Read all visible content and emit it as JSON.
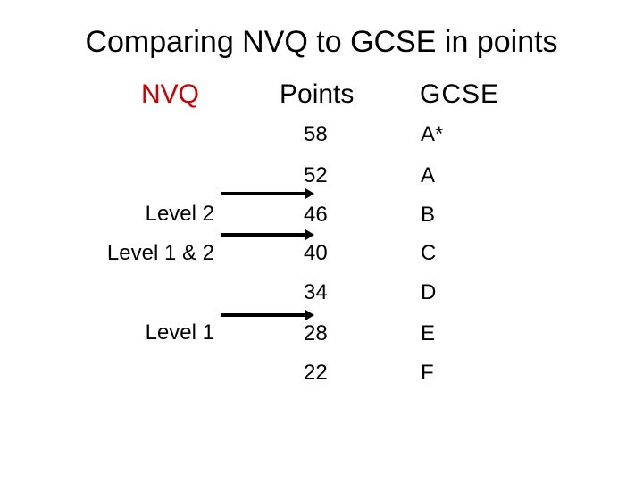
{
  "slide": {
    "title": "Comparing NVQ to GCSE in points",
    "headers": {
      "nvq": "NVQ",
      "points": "Points",
      "gcse": "GCSE"
    },
    "accent_color": "#cc0000",
    "rows": [
      {
        "points": "58",
        "grade": "A*",
        "nvq_level": ""
      },
      {
        "points": "52",
        "grade": "A",
        "nvq_level": ""
      },
      {
        "points": "46",
        "grade": "B",
        "nvq_level": "Level 2"
      },
      {
        "points": "40",
        "grade": "C",
        "nvq_level": "Level 1 & 2"
      },
      {
        "points": "34",
        "grade": "D",
        "nvq_level": ""
      },
      {
        "points": "28",
        "grade": "E",
        "nvq_level": "Level 1"
      },
      {
        "points": "22",
        "grade": "F",
        "nvq_level": ""
      }
    ],
    "arrow_icon": "arrow-right-icon"
  }
}
